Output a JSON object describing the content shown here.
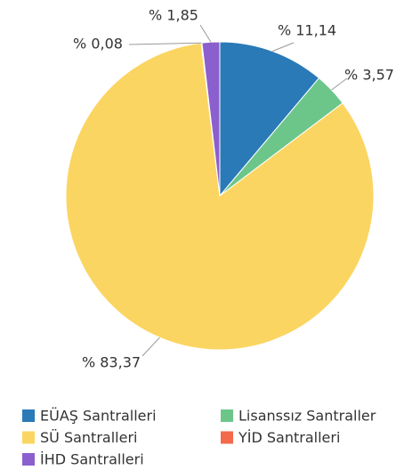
{
  "chart_data": {
    "type": "pie",
    "categories": [
      "EÜAŞ Santralleri",
      "Lisanssız Santraller",
      "SÜ Santralleri",
      "YİD Santralleri",
      "İHD Santralleri"
    ],
    "values": [
      11.14,
      3.57,
      83.37,
      0.08,
      1.85
    ],
    "value_labels": [
      "% 11,14",
      "% 3,57",
      "% 83,37",
      "% 0,08",
      "% 1,85"
    ],
    "colors": [
      "#2a7ab8",
      "#6cc68a",
      "#fbd561",
      "#f26a4b",
      "#8b5fce"
    ],
    "legend": "bottom"
  }
}
